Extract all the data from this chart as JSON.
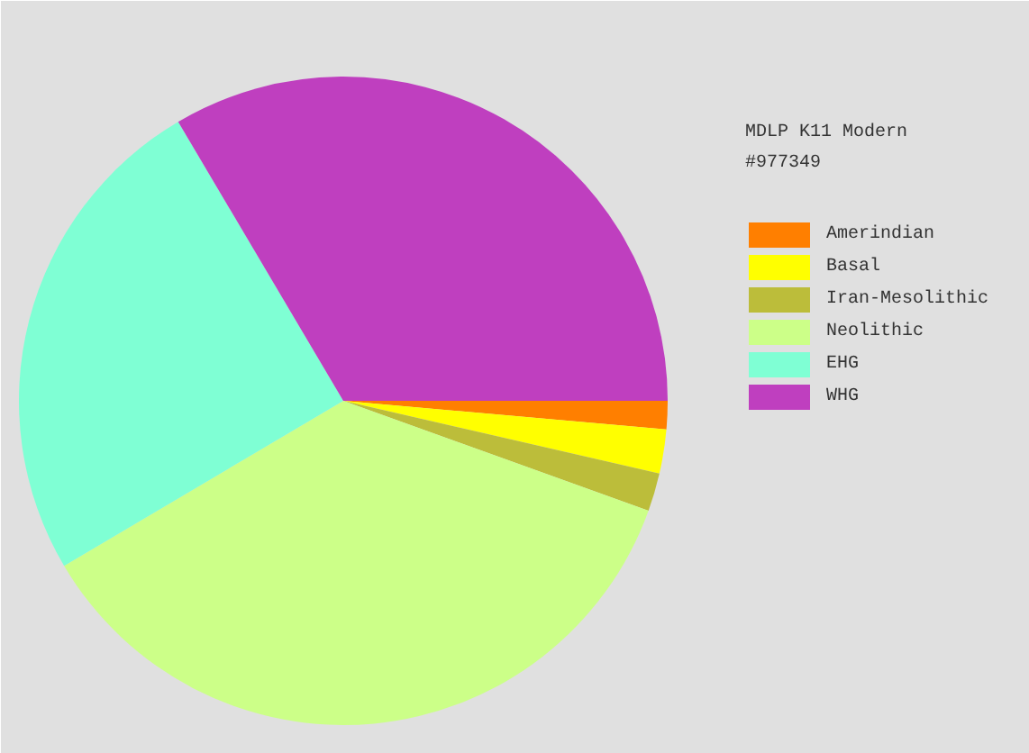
{
  "chart_data": {
    "type": "pie",
    "legend_title": "MDLP K11 Modern\n#977349",
    "legend": "right",
    "categories": [
      "Amerindian",
      "Basal",
      "Iran-Mesolithic",
      "Neolithic",
      "EHG",
      "WHG"
    ],
    "values": [
      1.4,
      2.2,
      1.9,
      36,
      25,
      33.5
    ],
    "colors": [
      "#ff7f00",
      "#ffff00",
      "#bcbd3a",
      "#ccff88",
      "#7fffd4",
      "#bf3fbf"
    ]
  }
}
